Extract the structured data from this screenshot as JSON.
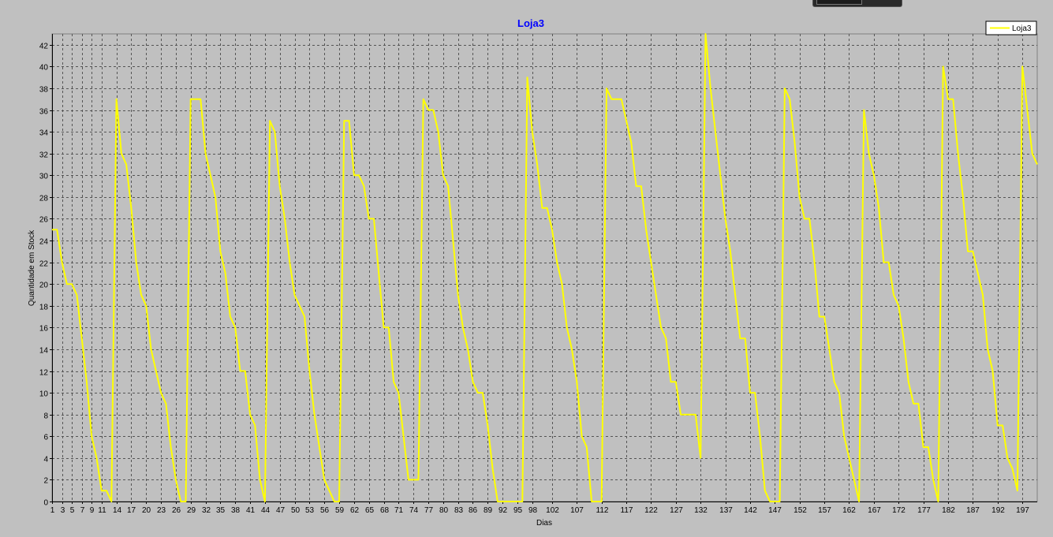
{
  "chart_data": {
    "type": "line",
    "title": "Loja3",
    "xlabel": "Dias",
    "ylabel": "Quantidade em Stock",
    "xlim": [
      1,
      200
    ],
    "ylim": [
      0,
      43
    ],
    "x_ticks": [
      1,
      3,
      5,
      7,
      9,
      11,
      14,
      17,
      20,
      23,
      26,
      29,
      32,
      35,
      38,
      41,
      44,
      47,
      50,
      53,
      56,
      59,
      62,
      65,
      68,
      71,
      74,
      77,
      80,
      83,
      86,
      89,
      92,
      95,
      98,
      102,
      107,
      112,
      117,
      122,
      127,
      132,
      137,
      142,
      147,
      152,
      157,
      162,
      167,
      172,
      177,
      182,
      187,
      192,
      197
    ],
    "y_ticks": [
      0,
      2,
      4,
      6,
      8,
      10,
      12,
      14,
      16,
      18,
      20,
      22,
      24,
      26,
      28,
      30,
      32,
      34,
      36,
      38,
      40,
      42
    ],
    "grid": true,
    "legend": "top-right",
    "colors": {
      "background": "#c0c0c0",
      "line": "#ffff00",
      "title": "#0000ff",
      "grid": "#555555",
      "axis_text": "#000000"
    },
    "series": [
      {
        "name": "Loja3",
        "x": [
          1,
          2,
          3,
          4,
          5,
          6,
          7,
          8,
          9,
          10,
          11,
          12,
          13,
          14,
          15,
          16,
          17,
          18,
          19,
          20,
          21,
          22,
          23,
          24,
          25,
          26,
          27,
          28,
          29,
          30,
          31,
          32,
          33,
          34,
          35,
          36,
          37,
          38,
          39,
          40,
          41,
          42,
          43,
          44,
          45,
          46,
          47,
          48,
          49,
          50,
          51,
          52,
          53,
          54,
          55,
          56,
          57,
          58,
          59,
          60,
          61,
          62,
          63,
          64,
          65,
          66,
          67,
          68,
          69,
          70,
          71,
          72,
          73,
          74,
          75,
          76,
          77,
          78,
          79,
          80,
          81,
          82,
          83,
          84,
          85,
          86,
          87,
          88,
          89,
          90,
          91,
          92,
          93,
          94,
          95,
          96,
          97,
          98,
          99,
          100,
          101,
          102,
          103,
          104,
          105,
          106,
          107,
          108,
          109,
          110,
          111,
          112,
          113,
          114,
          115,
          116,
          117,
          118,
          119,
          120,
          121,
          122,
          123,
          124,
          125,
          126,
          127,
          128,
          129,
          130,
          131,
          132,
          133,
          134,
          135,
          136,
          137,
          138,
          139,
          140,
          141,
          142,
          143,
          144,
          145,
          146,
          147,
          148,
          149,
          150,
          151,
          152,
          153,
          154,
          155,
          156,
          157,
          158,
          159,
          160,
          161,
          162,
          163,
          164,
          165,
          166,
          167,
          168,
          169,
          170,
          171,
          172,
          173,
          174,
          175,
          176,
          177,
          178,
          179,
          180,
          181,
          182,
          183,
          184,
          185,
          186,
          187,
          188,
          189,
          190,
          191,
          192,
          193,
          194,
          195,
          196,
          197,
          198,
          199,
          200
        ],
        "values": [
          25,
          25,
          22,
          20,
          20,
          19,
          15,
          11,
          6,
          4,
          1,
          1,
          0,
          37,
          32,
          31,
          27,
          22,
          19,
          18,
          14,
          12,
          10,
          9,
          5,
          2,
          0,
          0,
          37,
          37,
          37,
          32,
          30,
          28,
          23,
          21,
          17,
          16,
          12,
          12,
          8,
          7,
          2,
          0,
          35,
          34,
          29,
          26,
          22,
          19,
          18,
          17,
          12,
          8,
          5,
          2,
          1,
          0,
          0,
          35,
          35,
          30,
          30,
          29,
          26,
          26,
          21,
          16,
          16,
          11,
          10,
          6,
          2,
          2,
          2,
          37,
          36,
          36,
          34,
          30,
          29,
          24,
          19,
          16,
          14,
          11,
          10,
          10,
          7,
          3,
          0,
          0,
          0,
          0,
          0,
          0,
          39,
          34,
          31,
          27,
          27,
          25,
          22,
          20,
          16,
          14,
          11,
          6,
          5,
          0,
          0,
          0,
          38,
          37,
          37,
          37,
          35,
          33,
          29,
          29,
          25,
          22,
          19,
          16,
          15,
          11,
          11,
          8,
          8,
          8,
          8,
          4,
          43,
          38,
          34,
          30,
          26,
          23,
          19,
          15,
          15,
          10,
          10,
          6,
          1,
          0,
          0,
          0,
          38,
          37,
          33,
          28,
          26,
          26,
          22,
          17,
          17,
          14,
          11,
          10,
          6,
          4,
          2,
          0,
          36,
          32,
          30,
          27,
          22,
          22,
          19,
          18,
          15,
          11,
          9,
          9,
          5,
          5,
          2,
          0,
          40,
          37,
          37,
          32,
          28,
          23,
          23,
          21,
          19,
          14,
          12,
          7,
          7,
          4,
          3,
          1,
          40,
          36,
          32,
          31
        ]
      }
    ]
  }
}
